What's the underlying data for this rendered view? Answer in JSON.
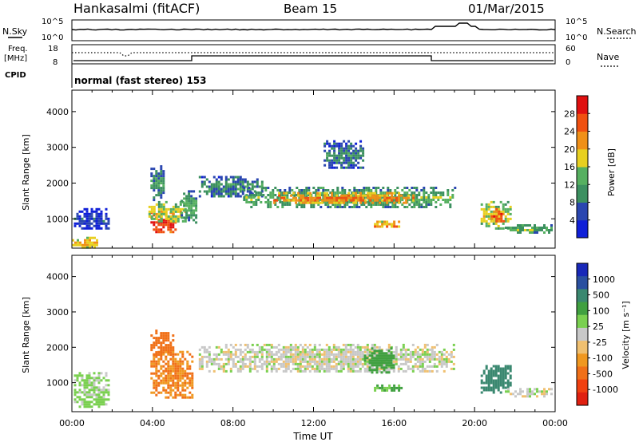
{
  "header": {
    "radar": "Hankasalmi (fitACF)",
    "beam": "Beam 15",
    "date": "01/Mar/2015"
  },
  "top_panels": {
    "nsky_label": "N.Sky",
    "nsky_ticks": [
      "10^5",
      "10^0"
    ],
    "nsearch_label": "N.Search",
    "nsearch_ticks": [
      "10^5",
      "10^0"
    ],
    "freq_label": "Freq.",
    "freq_unit": "[MHz]",
    "freq_ticks": [
      "18",
      "8"
    ],
    "nave_label": "Nave",
    "nave_ticks": [
      "60",
      "0"
    ],
    "cpid_label": "CPID",
    "cpid_value": "normal (fast stereo) 153"
  },
  "colors": {
    "power": [
      "#1020d8",
      "#2a46b0",
      "#3c9060",
      "#56b060",
      "#e8d020",
      "#f09018",
      "#f05010",
      "#e01010"
    ],
    "velocity": [
      "#e02010",
      "#f04010",
      "#f07018",
      "#f09820",
      "#f0c070",
      "#c8c8c8",
      "#7ad050",
      "#40a040",
      "#3a8870",
      "#2a50a0",
      "#1828b8"
    ],
    "scatter_gray": "#c8c8c8"
  },
  "chart_data": [
    {
      "type": "heatmap",
      "panel": "power",
      "ylabel": "Slant Range [km]",
      "xlabel": "",
      "y_ticks": [
        "1000",
        "2000",
        "3000",
        "4000"
      ],
      "ylim": [
        180,
        4600
      ],
      "xlim": [
        0,
        24
      ],
      "colorbar_label": "Power [dB]",
      "colorbar_ticks": [
        "4",
        "8",
        "12",
        "16",
        "20",
        "24",
        "28"
      ],
      "colorbar_range": [
        0,
        32
      ],
      "regions": [
        {
          "t0": 3.9,
          "t1": 5.2,
          "r0": 600,
          "r1": 1200,
          "v": 29
        },
        {
          "t0": 3.8,
          "t1": 5.6,
          "r0": 900,
          "r1": 1500,
          "v": 18
        },
        {
          "t0": 3.9,
          "t1": 4.6,
          "r0": 1500,
          "r1": 2500,
          "v": 12
        },
        {
          "t0": 5.4,
          "t1": 6.2,
          "r0": 900,
          "r1": 1800,
          "v": 13
        },
        {
          "t0": 6.3,
          "t1": 9.5,
          "r0": 1600,
          "r1": 2200,
          "v": 11
        },
        {
          "t0": 8.5,
          "t1": 19.0,
          "r0": 1300,
          "r1": 1900,
          "v": 14
        },
        {
          "t0": 10.0,
          "t1": 17.0,
          "r0": 1450,
          "r1": 1750,
          "v": 24
        },
        {
          "t0": 12.5,
          "t1": 14.5,
          "r0": 2400,
          "r1": 3200,
          "v": 10
        },
        {
          "t0": 15.0,
          "t1": 16.4,
          "r0": 750,
          "r1": 950,
          "v": 24
        },
        {
          "t0": 20.3,
          "t1": 21.8,
          "r0": 750,
          "r1": 1500,
          "v": 18
        },
        {
          "t0": 20.8,
          "t1": 21.5,
          "r0": 900,
          "r1": 1300,
          "v": 28
        },
        {
          "t0": 21.5,
          "t1": 23.8,
          "r0": 600,
          "r1": 850,
          "v": 14
        },
        {
          "t0": 0.1,
          "t1": 1.8,
          "r0": 700,
          "r1": 1300,
          "v": 6
        },
        {
          "t0": 0.0,
          "t1": 1.2,
          "r0": 200,
          "r1": 500,
          "v": 20
        }
      ]
    },
    {
      "type": "heatmap",
      "panel": "velocity",
      "ylabel": "Slant Range [km]",
      "xlabel": "Time UT",
      "x_ticks": [
        "00:00",
        "04:00",
        "08:00",
        "12:00",
        "16:00",
        "20:00",
        "00:00"
      ],
      "y_ticks": [
        "1000",
        "2000",
        "3000",
        "4000"
      ],
      "ylim": [
        180,
        4600
      ],
      "xlim": [
        0,
        24
      ],
      "colorbar_label": "Velocity [m s⁻¹]",
      "colorbar_ticks": [
        "1000",
        "500",
        "100",
        "25",
        "-25",
        "-100",
        "-500",
        "-1000"
      ],
      "regions": [
        {
          "t0": 3.9,
          "t1": 6.0,
          "r0": 600,
          "r1": 1900,
          "v": -250
        },
        {
          "t0": 3.9,
          "t1": 5.0,
          "r0": 1800,
          "r1": 2500,
          "v": -400
        },
        {
          "t0": 6.3,
          "t1": 19.0,
          "r0": 1300,
          "r1": 2100,
          "v": 0
        },
        {
          "t0": 14.5,
          "t1": 16.0,
          "r0": 1300,
          "r1": 2000,
          "v": 150
        },
        {
          "t0": 15.0,
          "t1": 16.4,
          "r0": 750,
          "r1": 950,
          "v": 90
        },
        {
          "t0": 20.3,
          "t1": 21.8,
          "r0": 750,
          "r1": 1500,
          "v": 300
        },
        {
          "t0": 21.5,
          "t1": 23.8,
          "r0": 600,
          "r1": 850,
          "v": 0
        },
        {
          "t0": 0.1,
          "t1": 1.8,
          "r0": 300,
          "r1": 1300,
          "v": 50
        }
      ]
    }
  ]
}
